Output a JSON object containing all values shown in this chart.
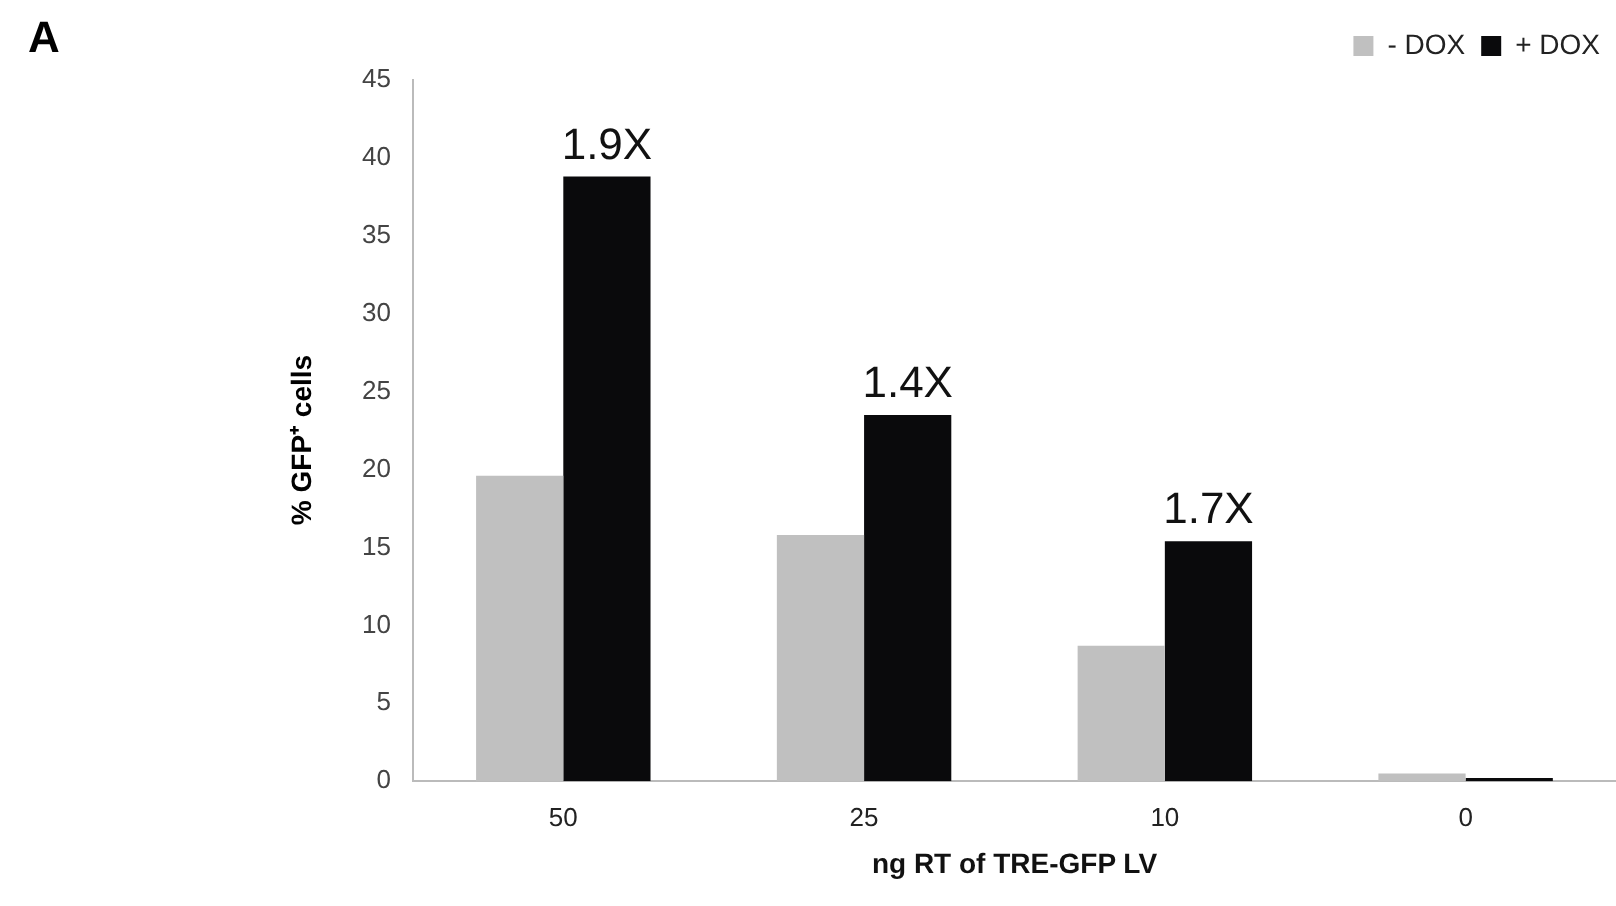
{
  "chart_data": {
    "type": "bar",
    "title": "A",
    "xlabel": "ng RT of TRE-GFP LV",
    "ylabel": "% GFP⁺ cells",
    "categories": [
      "50",
      "25",
      "10",
      "0"
    ],
    "series": [
      {
        "name": "- DOX",
        "color": "#c0c0c0",
        "values": [
          19.6,
          15.8,
          8.7,
          0.5
        ]
      },
      {
        "name": "+ DOX",
        "color": "#0a0a0c",
        "values": [
          38.8,
          23.5,
          15.4,
          0.2
        ]
      }
    ],
    "ylim": [
      0,
      45
    ],
    "yticks": [
      0,
      5,
      10,
      15,
      20,
      25,
      30,
      35,
      40,
      45
    ],
    "grid": false,
    "legend": "top right",
    "annotations": [
      {
        "text": "1.9X",
        "x": "50",
        "y": 38.8
      },
      {
        "text": "1.4X",
        "x": "25",
        "y": 23.5
      },
      {
        "text": "1.7X",
        "x": "10",
        "y": 15.4
      }
    ]
  }
}
